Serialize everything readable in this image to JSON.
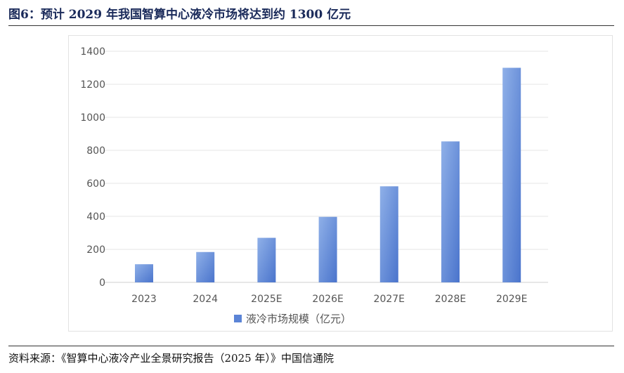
{
  "figure_title": "图6：预计 2029 年我国智算中心液冷市场将达到约 1300 亿元",
  "source": "资料来源：《智算中心液冷产业全景研究报告（2025 年）》中国信通院",
  "colors": {
    "bar": "#5b84d6",
    "bar_light": "#8fb0e8",
    "grid": "#e0e0e0",
    "tick": "#555555"
  },
  "chart_data": {
    "type": "bar",
    "title": "",
    "xlabel": "",
    "ylabel": "",
    "categories": [
      "2023",
      "2024",
      "2025E",
      "2026E",
      "2027E",
      "2028E",
      "2029E"
    ],
    "series": [
      {
        "name": "液冷市场规模（亿元）",
        "values": [
          110,
          184,
          270,
          397,
          582,
          854,
          1300
        ]
      }
    ],
    "ylim": [
      0,
      1400
    ],
    "yticks": [
      0,
      200,
      400,
      600,
      800,
      1000,
      1200,
      1400
    ],
    "grid": true,
    "legend": "bottom-center"
  }
}
